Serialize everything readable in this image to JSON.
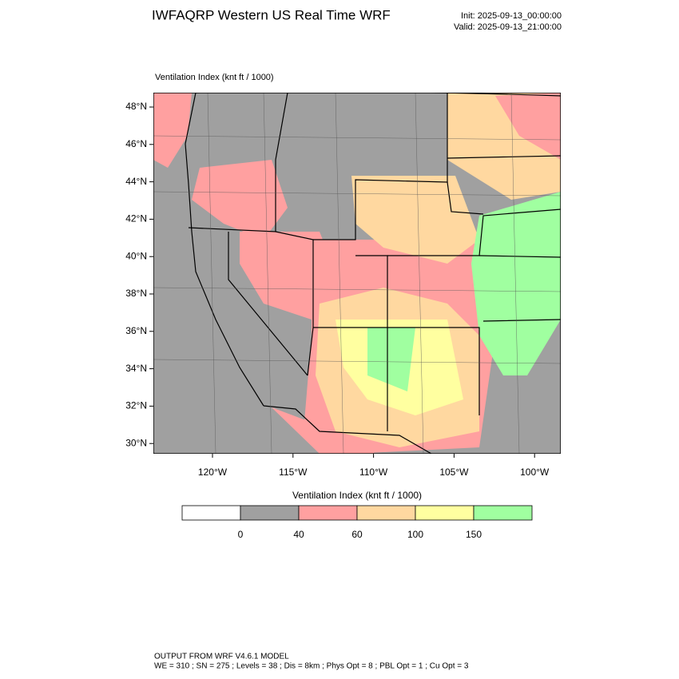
{
  "header": {
    "title": "IWFAQRP Western US Real Time WRF",
    "init": "Init: 2025-09-13_00:00:00",
    "valid": "Valid: 2025-09-13_21:00:00"
  },
  "map": {
    "label": "Ventilation Index   (knt ft / 1000)",
    "lat_labels": [
      "48°N",
      "46°N",
      "44°N",
      "42°N",
      "40°N",
      "38°N",
      "36°N",
      "34°N",
      "32°N",
      "30°N"
    ],
    "lon_labels": [
      "120°W",
      "115°W",
      "110°W",
      "105°W",
      "100°W"
    ]
  },
  "colorbar": {
    "title": "Ventilation Index   (knt ft / 1000)",
    "colors": [
      "#ffffff",
      "#a0a0a0",
      "#ffa0a0",
      "#ffd8a0",
      "#ffffa0",
      "#a0ffa0"
    ],
    "labels": [
      "0",
      "40",
      "60",
      "100",
      "150"
    ]
  },
  "footer": {
    "line1": "OUTPUT FROM WRF V4.6.1 MODEL",
    "line2": "WE = 310 ; SN = 275 ; Levels = 38 ; Dis = 8km ; Phys Opt = 8 ; PBL Opt = 1 ; Cu Opt = 3"
  }
}
